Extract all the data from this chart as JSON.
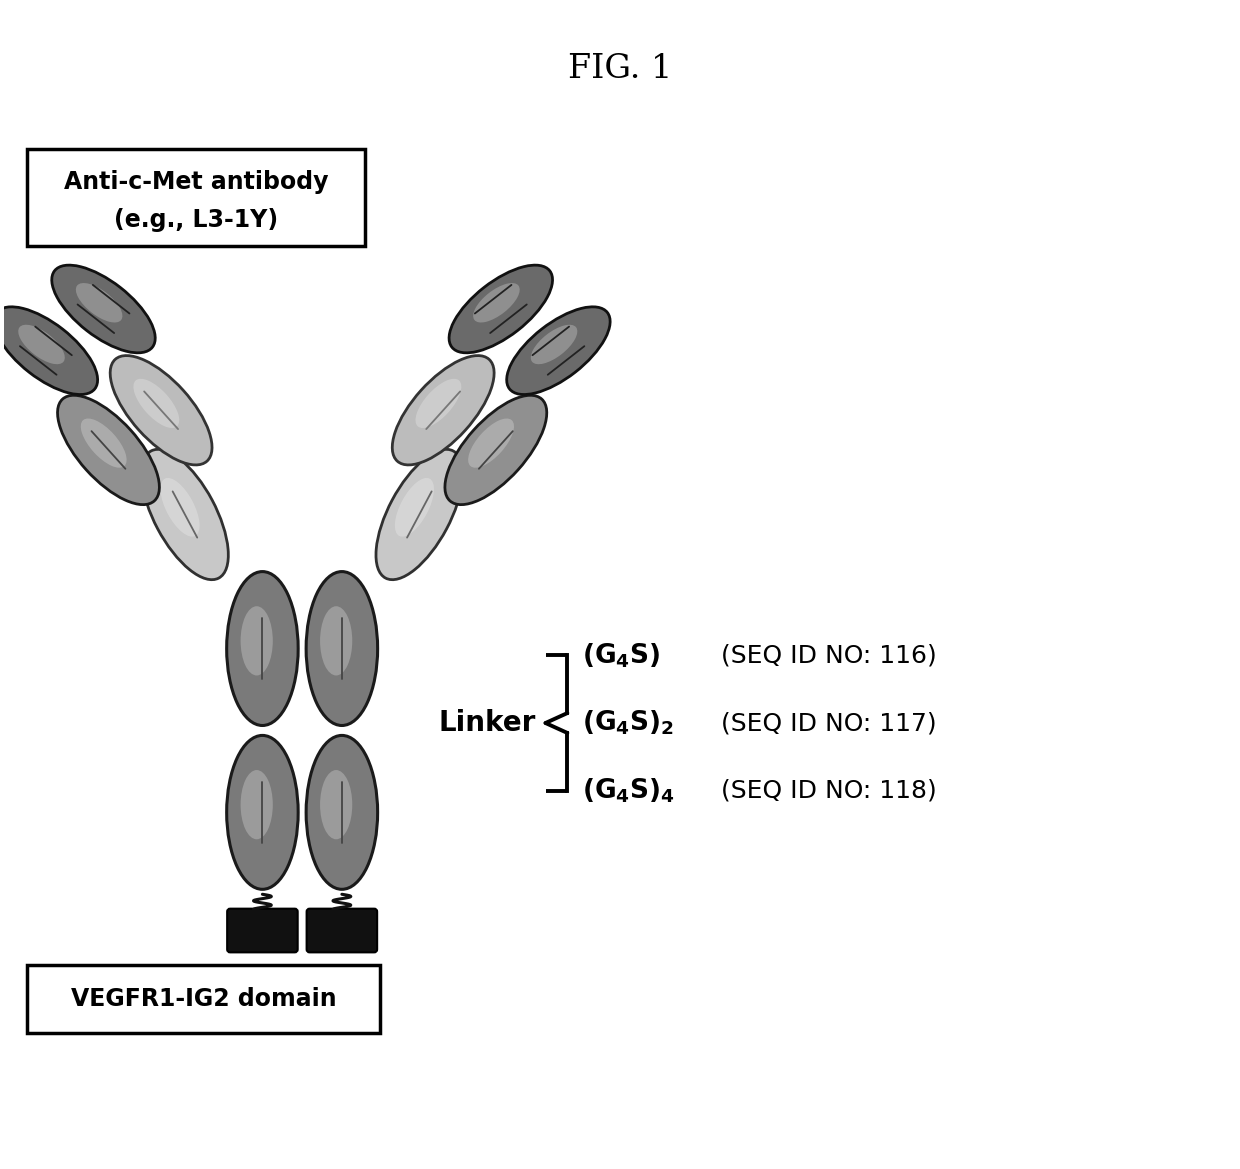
{
  "title": "FIG. 1",
  "box1_line1": "Anti-c-Met antibody",
  "box1_line2": "(e.g., L3-1Y)",
  "box2_text": "VEGFR1-IG2 domain",
  "linker_label": "Linker",
  "seq_entries": [
    {
      "formula_bold": "(G",
      "sub4": "4",
      "formula_end": "S)",
      "seq": "(SEQ ID NO: 116)"
    },
    {
      "formula_bold": "(G",
      "sub4": "4",
      "formula_end": "S)",
      "sub2": "2",
      "seq": "(SEQ ID NO: 117)"
    },
    {
      "formula_bold": "(G",
      "sub4": "4",
      "formula_end": "S)",
      "sub4b": "4",
      "seq": "(SEQ ID NO: 118)"
    }
  ],
  "bg_color": "#ffffff",
  "fc_color": "#888888",
  "fc_edge": "#1a1a1a",
  "fab_light_color": "#cccccc",
  "fab_dark_color": "#888888",
  "vh_color": "#707070",
  "vh_light_color": "#e8e8e8",
  "domain_color": "#111111"
}
